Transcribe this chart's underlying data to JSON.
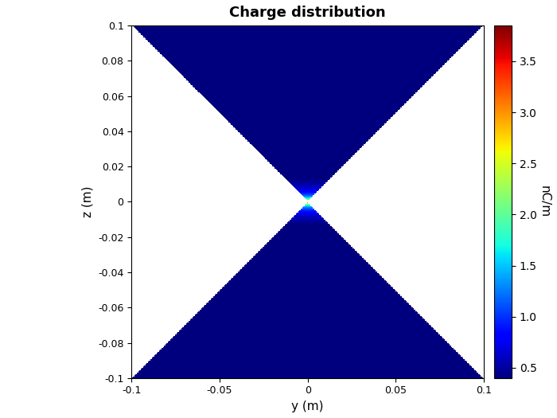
{
  "title": "Charge distribution",
  "xlabel": "y (m)",
  "ylabel": "z (m)",
  "xlim": [
    -0.1,
    0.1
  ],
  "ylim": [
    -0.1,
    0.1
  ],
  "colorbar_label": "nC/m",
  "colorbar_ticks": [
    0.5,
    1.0,
    1.5,
    2.0,
    2.5,
    3.0,
    3.5
  ],
  "vmin": 0.4,
  "vmax": 3.85,
  "grid_n": 600,
  "C": 0.006,
  "epsilon": 0.0015,
  "background_color": "white",
  "yticks": [
    -0.1,
    -0.08,
    -0.06,
    -0.04,
    -0.02,
    0.0,
    0.02,
    0.04,
    0.06,
    0.08,
    0.1
  ],
  "xticks": [
    -0.1,
    -0.05,
    0.0,
    0.05,
    0.1
  ],
  "figsize": [
    7.0,
    5.25
  ],
  "dpi": 100
}
